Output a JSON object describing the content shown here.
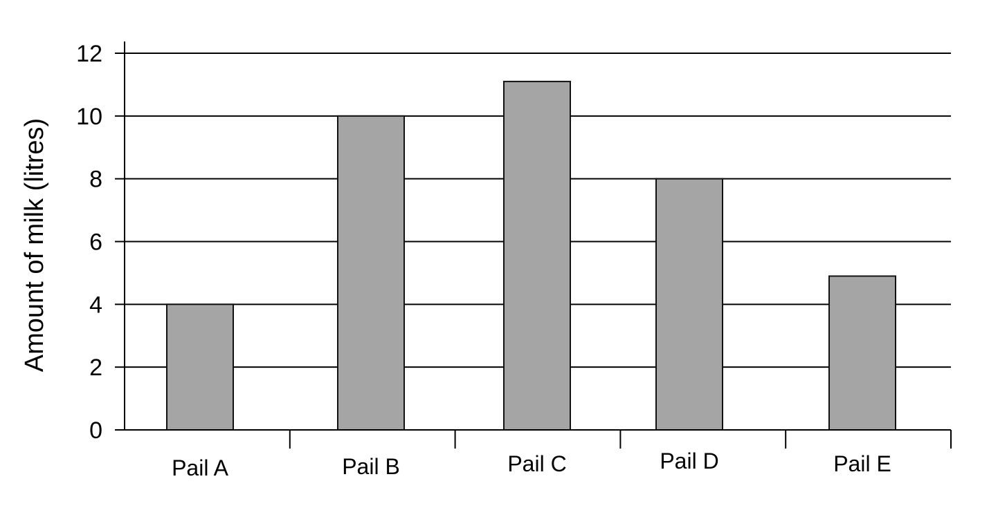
{
  "chart_data": {
    "type": "bar",
    "categories": [
      "Pail A",
      "Pail B",
      "Pail C",
      "Pail D",
      "Pail E"
    ],
    "values": [
      4,
      10,
      11.1,
      8,
      4.9
    ],
    "title": "",
    "xlabel": "",
    "ylabel": "Amount of milk (litres)",
    "ylim": [
      0,
      12
    ],
    "yticks": [
      0,
      2,
      4,
      6,
      8,
      10,
      12
    ],
    "grid": true,
    "legend": "none",
    "colors": {
      "bar_fill": "#a6a5a6",
      "bar_stroke": "#111111",
      "grid": "#000000",
      "axis": "#000000"
    }
  }
}
